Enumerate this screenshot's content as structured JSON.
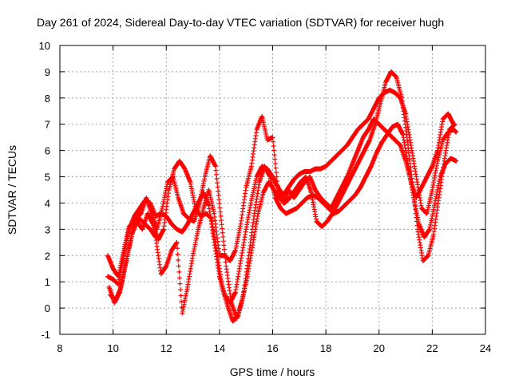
{
  "chart_data": {
    "type": "scatter",
    "title": "Day 261 of 2024, Sidereal Day-to-day VTEC variation (SDTVAR) for receiver hugh",
    "xlabel": "GPS time / hours",
    "ylabel": "SDTVAR / TECUs",
    "xlim": [
      8,
      24
    ],
    "ylim": [
      -1,
      10
    ],
    "xticks": [
      8,
      10,
      12,
      14,
      16,
      18,
      20,
      22,
      24
    ],
    "yticks": [
      -1,
      0,
      1,
      2,
      3,
      4,
      5,
      6,
      7,
      8,
      9,
      10
    ],
    "grid": true,
    "marker": "+",
    "color": "#ff0000",
    "series": [
      {
        "x": [
          9.8,
          10.0,
          10.2,
          10.4,
          10.6,
          10.8,
          11.0,
          11.2,
          11.4,
          11.6,
          11.8,
          12.0,
          12.2,
          12.4,
          12.6,
          12.8,
          13.0,
          13.2,
          13.4,
          13.6,
          13.8,
          14.0,
          14.2,
          14.4,
          14.6,
          14.8,
          15.0,
          15.2,
          15.4,
          15.6,
          15.8,
          16.0,
          16.2,
          16.4,
          16.6,
          16.8,
          17.0,
          17.2,
          17.4,
          17.6,
          17.8,
          18.0,
          18.2,
          18.4,
          18.6,
          18.8,
          19.0,
          19.2,
          19.4,
          19.6,
          19.8,
          20.0,
          20.2,
          20.4,
          20.6,
          20.8,
          21.0,
          21.2,
          21.4,
          21.6,
          21.8,
          22.0,
          22.2,
          22.4,
          22.6,
          22.8,
          22.9
        ],
        "y": [
          1.2,
          1.1,
          0.9,
          2.0,
          3.0,
          3.5,
          3.8,
          4.1,
          4.0,
          3.5,
          3.6,
          3.5,
          3.2,
          3.0,
          2.9,
          3.2,
          3.6,
          4.0,
          4.4,
          3.9,
          2.5,
          1.2,
          0.5,
          0.2,
          0.6,
          1.8,
          3.0,
          4.1,
          5.0,
          5.4,
          5.3,
          5.0,
          4.6,
          4.3,
          4.6,
          4.9,
          5.1,
          5.2,
          5.2,
          5.3,
          5.3,
          5.4,
          5.6,
          5.8,
          6.0,
          6.2,
          6.5,
          6.8,
          7.0,
          7.2,
          7.6,
          8.0,
          8.2,
          8.3,
          8.2,
          8.0,
          7.4,
          6.2,
          5.0,
          3.8,
          3.6,
          4.5,
          5.6,
          6.4,
          6.7,
          6.8,
          6.7
        ]
      },
      {
        "x": [
          9.9,
          10.1,
          10.3,
          10.5,
          10.7,
          10.9,
          11.1,
          11.3,
          11.5,
          11.7,
          11.9,
          12.1,
          12.3,
          12.5,
          12.7,
          12.9,
          13.1,
          13.3,
          13.5,
          13.7,
          13.9,
          14.1,
          14.3,
          14.5,
          14.7,
          14.9,
          15.1,
          15.3,
          15.5,
          15.7,
          15.9,
          16.1,
          16.3,
          16.5,
          16.7,
          16.9,
          17.1,
          17.3,
          17.5,
          17.7,
          17.9,
          18.1,
          18.3,
          18.5,
          18.7,
          18.9,
          19.1,
          19.3,
          19.5,
          19.7,
          19.9,
          20.1,
          20.3,
          20.5,
          20.7,
          20.9,
          21.1,
          21.3,
          21.5,
          21.7,
          21.9,
          22.1,
          22.3,
          22.5,
          22.7,
          22.9
        ],
        "y": [
          0.5,
          0.3,
          0.8,
          1.8,
          2.8,
          3.3,
          3.0,
          3.6,
          3.2,
          2.6,
          3.0,
          4.5,
          5.3,
          5.6,
          5.3,
          4.8,
          3.8,
          3.5,
          3.6,
          3.4,
          2.2,
          0.8,
          0.1,
          -0.5,
          -0.3,
          0.5,
          2.0,
          3.5,
          4.8,
          5.4,
          5.0,
          4.2,
          3.8,
          3.6,
          3.7,
          3.8,
          4.0,
          4.2,
          4.3,
          4.2,
          4.0,
          3.8,
          3.6,
          3.7,
          3.9,
          4.1,
          4.3,
          4.6,
          5.0,
          5.4,
          5.9,
          6.3,
          6.6,
          6.9,
          7.0,
          6.6,
          5.4,
          4.2,
          3.2,
          2.7,
          3.0,
          4.0,
          5.0,
          5.5,
          5.7,
          5.6
        ]
      },
      {
        "x": [
          9.85,
          10.05,
          10.25,
          10.45,
          10.65,
          10.85,
          11.05,
          11.25,
          11.45,
          11.65,
          11.85,
          12.05,
          12.25,
          12.45,
          12.65,
          12.85,
          13.05,
          13.25,
          13.45,
          13.65,
          13.85,
          14.05,
          14.25,
          14.45,
          14.65,
          14.85,
          15.05,
          15.25,
          15.45,
          15.65,
          15.85,
          16.05,
          16.25,
          16.45,
          16.65,
          16.85,
          17.05,
          17.25,
          17.45,
          17.65,
          17.85,
          18.05,
          18.25,
          18.45,
          18.65,
          18.85,
          19.05,
          19.25,
          19.45,
          19.65,
          19.85,
          20.05,
          20.25,
          20.45,
          20.65,
          20.85,
          21.05,
          21.25,
          21.45,
          21.65,
          21.85,
          22.05,
          22.25,
          22.45,
          22.65,
          22.85
        ],
        "y": [
          0.8,
          0.2,
          0.6,
          1.6,
          2.5,
          3.4,
          3.6,
          4.2,
          3.6,
          3.0,
          3.8,
          4.8,
          5.0,
          4.2,
          3.6,
          3.4,
          3.3,
          4.0,
          5.0,
          5.8,
          5.4,
          3.5,
          1.6,
          0.2,
          -0.4,
          0.3,
          1.2,
          2.4,
          3.6,
          4.4,
          4.8,
          4.5,
          4.2,
          4.0,
          4.2,
          4.5,
          4.8,
          5.0,
          4.4,
          3.3,
          3.1,
          3.3,
          3.6,
          4.0,
          4.4,
          4.8,
          5.2,
          5.6,
          6.0,
          6.4,
          7.0,
          7.8,
          8.6,
          9.0,
          8.8,
          8.0,
          6.5,
          4.8,
          3.0,
          1.8,
          2.0,
          2.8,
          4.2,
          5.6,
          6.8,
          7.0
        ]
      },
      {
        "x": [
          9.8,
          10.0,
          10.2,
          10.4,
          10.6,
          10.8,
          11.0,
          11.2,
          11.4,
          11.6,
          11.8,
          12.0,
          12.2,
          12.4,
          12.6,
          12.8,
          13.0,
          13.2,
          13.4,
          13.6,
          13.8,
          14.0,
          14.2,
          14.4,
          14.6,
          14.8,
          15.0,
          15.2,
          15.4,
          15.6,
          15.8,
          16.0,
          16.2,
          16.4,
          16.6,
          16.8,
          17.0,
          17.2,
          17.4,
          17.6,
          17.8,
          18.0,
          18.2,
          18.4,
          18.6,
          18.8,
          19.0,
          19.2,
          19.4,
          19.6,
          19.8,
          20.0,
          20.2,
          20.4,
          20.6,
          20.8,
          21.0,
          21.2,
          21.4,
          21.6,
          21.8,
          22.0,
          22.2,
          22.4,
          22.6,
          22.8
        ],
        "y": [
          2.0,
          1.5,
          1.2,
          2.2,
          3.1,
          3.3,
          3.4,
          3.2,
          3.0,
          2.7,
          1.3,
          1.6,
          2.2,
          2.5,
          -0.2,
          0.8,
          2.0,
          3.0,
          3.8,
          4.5,
          3.6,
          2.0,
          2.0,
          1.8,
          2.2,
          3.2,
          4.6,
          5.4,
          6.8,
          7.3,
          6.4,
          6.5,
          4.5,
          4.0,
          4.5,
          4.2,
          4.5,
          4.8,
          5.0,
          4.5,
          4.2,
          4.0,
          3.8,
          4.2,
          4.6,
          5.0,
          5.5,
          6.0,
          6.5,
          6.8,
          7.2,
          7.0,
          6.8,
          6.6,
          6.4,
          6.2,
          5.6,
          4.8,
          4.2,
          4.6,
          5.0,
          5.4,
          6.0,
          7.2,
          7.4,
          7.0
        ]
      }
    ]
  }
}
